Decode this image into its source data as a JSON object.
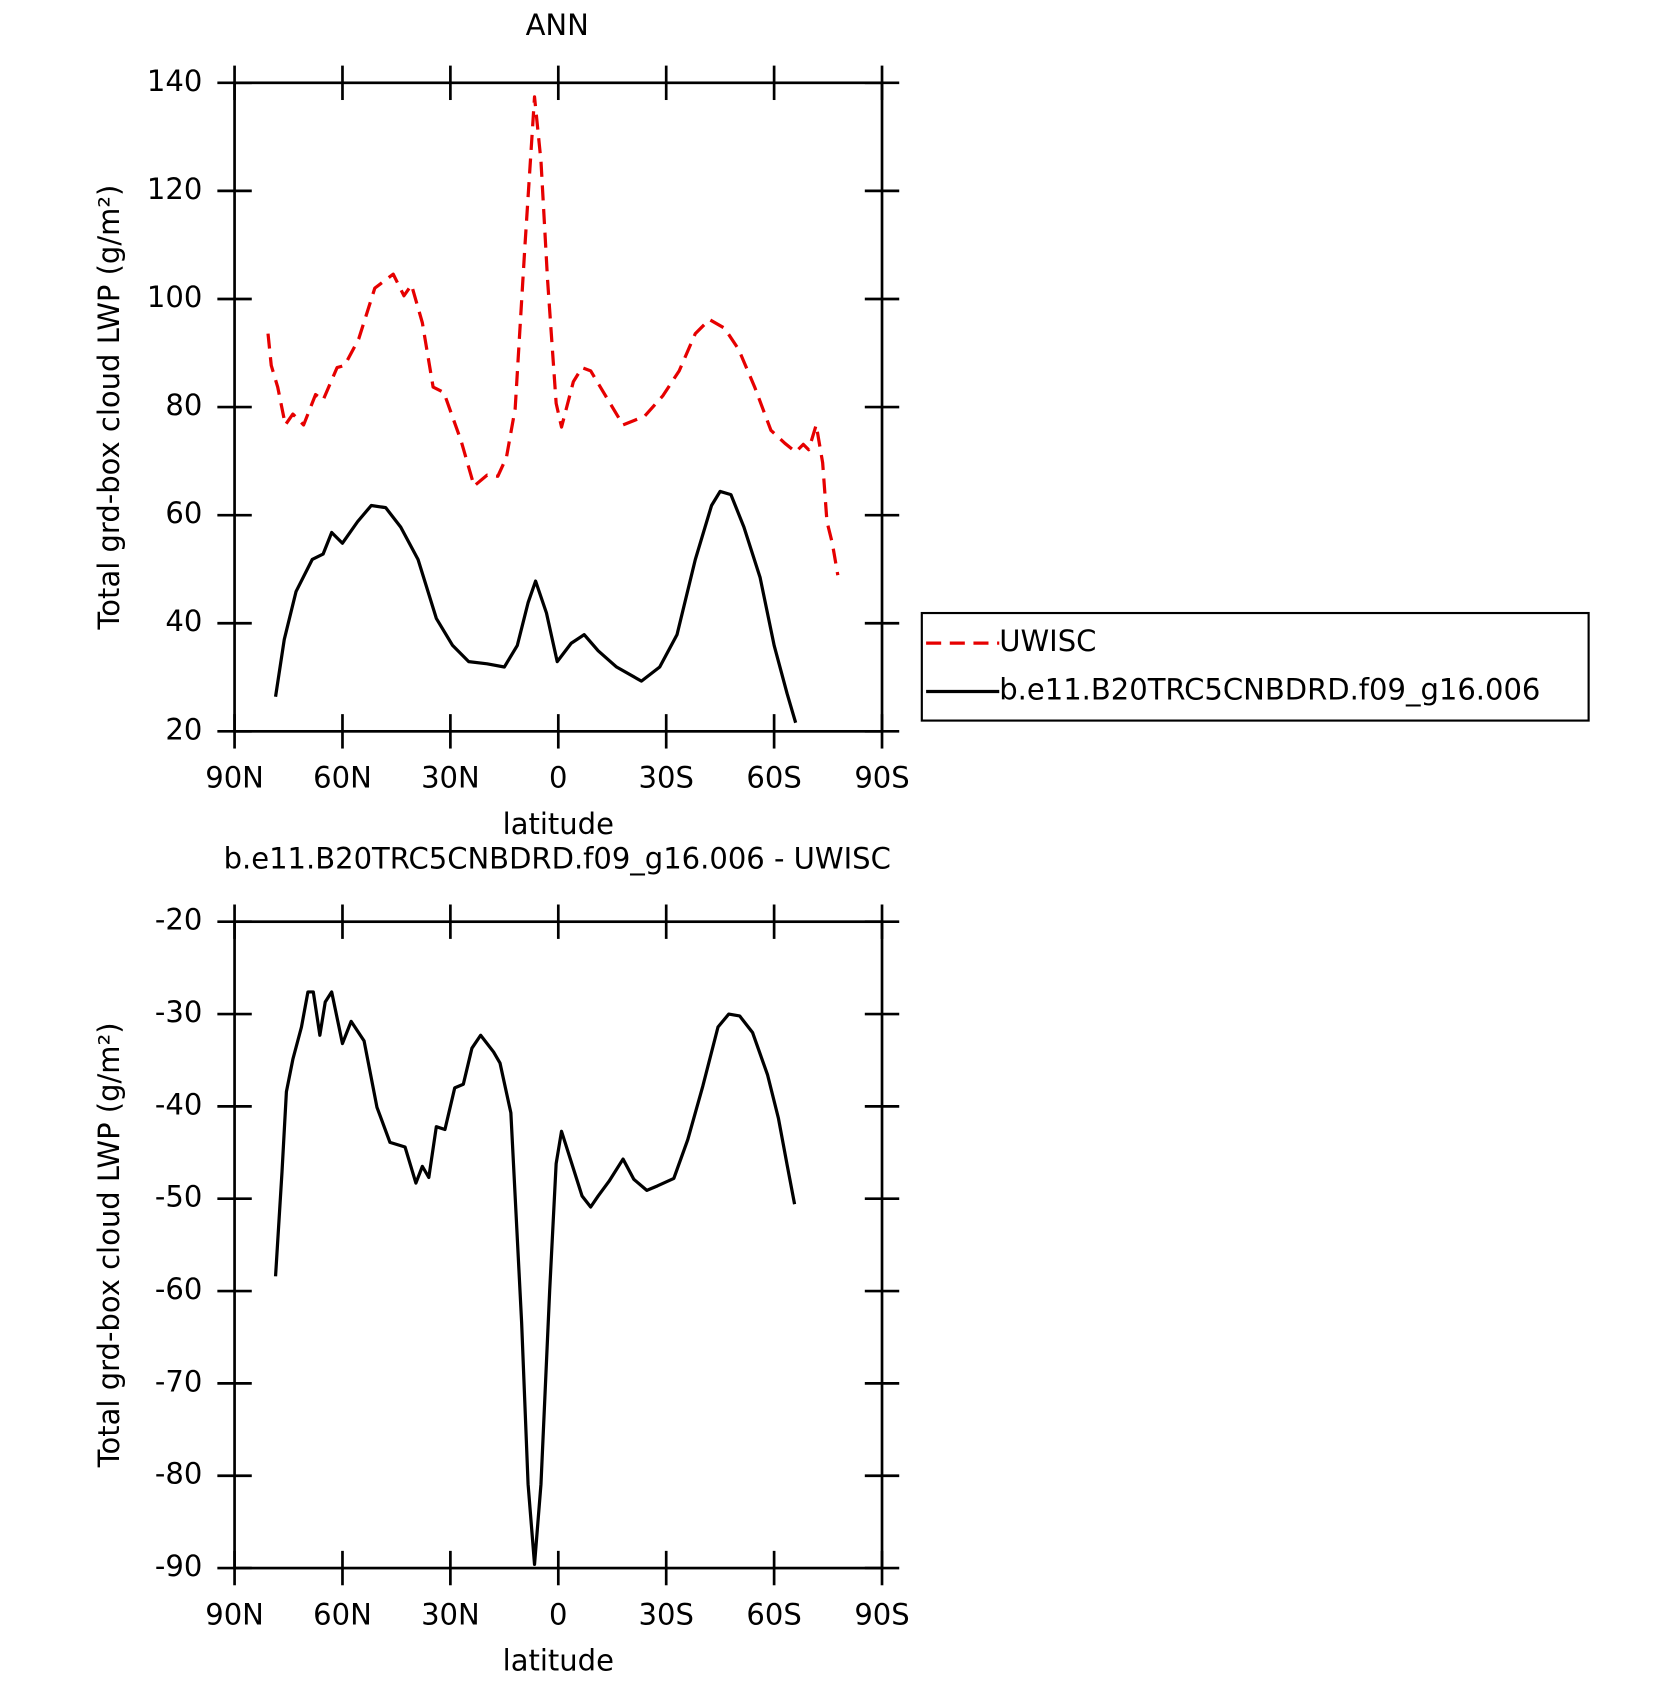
{
  "chart_data": [
    {
      "type": "line",
      "title": "ANN",
      "xlabel": "latitude",
      "ylabel": "Total grd-box cloud LWP (g/m²)",
      "xlim": [
        90,
        -90
      ],
      "xticks": [
        {
          "value": 90,
          "label": "90N"
        },
        {
          "value": 60,
          "label": "60N"
        },
        {
          "value": 30,
          "label": "30N"
        },
        0,
        {
          "value": -30,
          "label": "30S"
        },
        {
          "value": -60,
          "label": "60S"
        },
        {
          "value": -90,
          "label": "90S"
        }
      ],
      "ylim": [
        20,
        140
      ],
      "yticks": [
        20,
        40,
        60,
        80,
        100,
        120,
        140
      ],
      "legend": "right",
      "series": [
        {
          "name": "UWISC",
          "color": "#e60000",
          "dashed": true,
          "x": [
            80.7,
            79.8,
            78,
            75.9,
            73.8,
            70.8,
            67.5,
            65.4,
            61.5,
            59.4,
            55.5,
            51,
            45.9,
            42.9,
            40.8,
            37.8,
            34.8,
            31.8,
            27,
            23.4,
            19.8,
            16.8,
            14.4,
            12,
            9.3,
            6.6,
            4.8,
            3,
            0.6,
            -0.9,
            -4.2,
            -6.6,
            -9,
            -12.6,
            -18,
            -24,
            -29.1,
            -33.6,
            -38.1,
            -42,
            -46.2,
            -50.1,
            -54.6,
            -59.1,
            -63,
            -66,
            -68.1,
            -69.6,
            -71.7,
            -73.5,
            -74.7,
            -76.2,
            -77.7
          ],
          "values": [
            93.6,
            87.7,
            83.7,
            76.7,
            78.7,
            76.7,
            82.3,
            81.3,
            87.3,
            87.7,
            92.6,
            102,
            104.6,
            100.6,
            102.6,
            95.6,
            83.7,
            82.7,
            73.7,
            65.4,
            67.4,
            67.2,
            70.7,
            79.7,
            109.6,
            137.4,
            125.5,
            103.6,
            80.7,
            76.3,
            84.7,
            87.3,
            86.7,
            82.7,
            76.7,
            78.3,
            82.1,
            86.7,
            93.6,
            96.2,
            94.6,
            90.7,
            83.7,
            75.7,
            73.3,
            71.7,
            73.1,
            72.1,
            76.7,
            69.7,
            58.8,
            54.8,
            48.9
          ]
        },
        {
          "name": "b.e11.B20TRC5CNBDRD.f09_g16.006",
          "color": "#000000",
          "dashed": false,
          "x": [
            78.6,
            76.2,
            72.9,
            68.4,
            65.4,
            63,
            60,
            55.8,
            52,
            48,
            43.8,
            39,
            33.9,
            29.4,
            24.9,
            19.8,
            15,
            11.4,
            8.4,
            6.3,
            3.3,
            0.3,
            -3.6,
            -7.2,
            -11.1,
            -16.2,
            -23.1,
            -28.2,
            -33,
            -38.1,
            -42.6,
            -45,
            -48,
            -51.6,
            -56.1,
            -60,
            -63.6,
            -66
          ],
          "values": [
            26.4,
            37,
            45.9,
            51.8,
            52.8,
            56.8,
            54.8,
            58.8,
            61.8,
            61.4,
            57.8,
            51.8,
            40.9,
            35.9,
            32.9,
            32.5,
            31.9,
            35.9,
            43.8,
            47.8,
            41.9,
            32.9,
            36.3,
            37.9,
            34.9,
            31.9,
            29.3,
            31.9,
            37.9,
            51.8,
            61.8,
            64.4,
            63.8,
            57.8,
            48.5,
            35.9,
            27,
            21.6
          ]
        }
      ]
    },
    {
      "type": "line",
      "title": "b.e11.B20TRC5CNBDRD.f09_g16.006 - UWISC",
      "xlabel": "latitude",
      "ylabel": "Total grd-box cloud LWP (g/m²)",
      "xlim": [
        90,
        -90
      ],
      "xticks": [
        {
          "value": 90,
          "label": "90N"
        },
        {
          "value": 60,
          "label": "60N"
        },
        {
          "value": 30,
          "label": "30N"
        },
        0,
        {
          "value": -30,
          "label": "30S"
        },
        {
          "value": -60,
          "label": "60S"
        },
        {
          "value": -90,
          "label": "90S"
        }
      ],
      "ylim": [
        -90,
        -20
      ],
      "yticks": [
        -90,
        -80,
        -70,
        -60,
        -50,
        -40,
        -30,
        -20
      ],
      "series": [
        {
          "color": "#000000",
          "dashed": false,
          "x": [
            78.6,
            76.8,
            75.6,
            73.8,
            71.4,
            69.6,
            68.1,
            66.3,
            64.8,
            63,
            60,
            57.6,
            54,
            50.4,
            46.8,
            42.6,
            39.6,
            37.8,
            36,
            33.9,
            31.5,
            28.8,
            26.4,
            24,
            21.6,
            18,
            16.2,
            13.2,
            10.2,
            8.4,
            6.6,
            4.8,
            2.4,
            0.6,
            -0.9,
            -3.6,
            -6.6,
            -9,
            -11.1,
            -14.1,
            -18,
            -21,
            -24.6,
            -27.6,
            -32.1,
            -36,
            -40.2,
            -44.4,
            -47.4,
            -50.4,
            -54,
            -58.2,
            -61.2,
            -63.6,
            -65.7
          ],
          "values": [
            -58.4,
            -47.1,
            -38.4,
            -34.9,
            -31.4,
            -27.6,
            -27.6,
            -32.3,
            -28.7,
            -27.6,
            -33.2,
            -30.8,
            -32.9,
            -40.1,
            -43.9,
            -44.4,
            -48.3,
            -46.5,
            -47.7,
            -42.2,
            -42.5,
            -38,
            -37.6,
            -33.7,
            -32.3,
            -34.1,
            -35.3,
            -40.7,
            -63.4,
            -80.9,
            -89.6,
            -80.9,
            -59.9,
            -46.2,
            -42.7,
            -46,
            -49.7,
            -50.9,
            -49.7,
            -48.1,
            -45.7,
            -47.9,
            -49.1,
            -48.6,
            -47.8,
            -43.6,
            -37.8,
            -31.4,
            -30,
            -30.2,
            -32,
            -36.6,
            -41.3,
            -46.3,
            -50.6
          ]
        }
      ]
    }
  ]
}
